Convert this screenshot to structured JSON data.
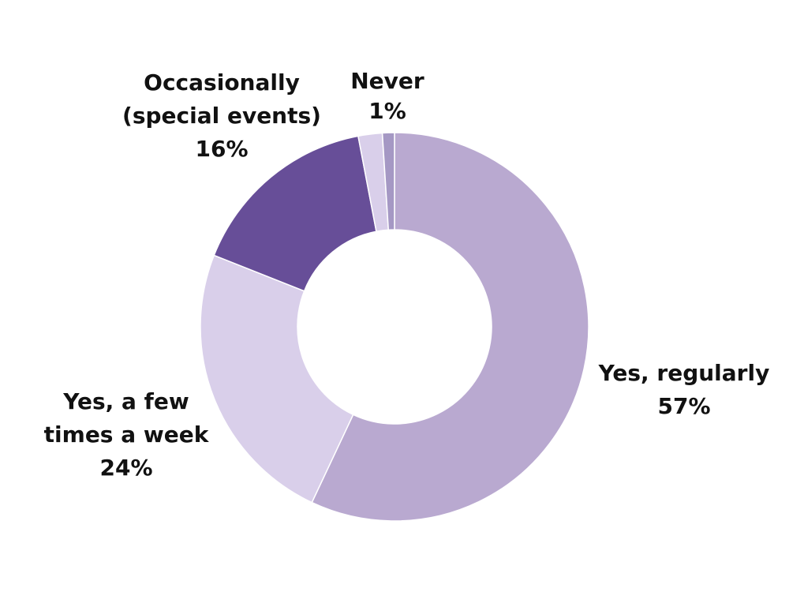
{
  "chart_data": {
    "type": "pie",
    "variant": "donut",
    "start_angle_deg": 0,
    "direction": "clockwise",
    "title": "",
    "slices": [
      {
        "label_lines": [
          "Yes, regularly"
        ],
        "value": 57,
        "value_label": "57%",
        "color": "#b9a9d0",
        "show_label": true
      },
      {
        "label_lines": [
          "Yes, a few",
          "times a week"
        ],
        "value": 24,
        "value_label": "24%",
        "color": "#d9cfea",
        "show_label": true
      },
      {
        "label_lines": [
          "Occasionally",
          "(special events)"
        ],
        "value": 16,
        "value_label": "16%",
        "color": "#674e98",
        "show_label": true
      },
      {
        "value": 2,
        "color": "#d9cfea",
        "show_label": false
      },
      {
        "label_lines": [
          "Never"
        ],
        "value": 1,
        "value_label": "1%",
        "color": "#a598c4",
        "show_label": true
      }
    ],
    "legend": "none"
  }
}
